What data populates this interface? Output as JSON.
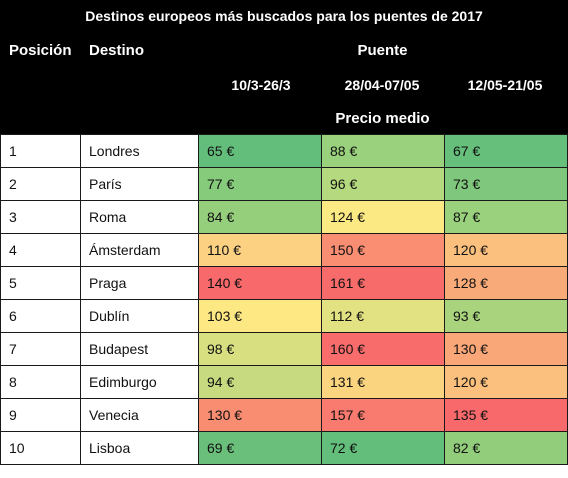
{
  "title": "Destinos europeos más buscados para los puentes de 2017",
  "headers": {
    "position": "Posición",
    "destination": "Destino",
    "bridge": "Puente",
    "periods": [
      "10/3-26/3",
      "28/04-07/05",
      "12/05-21/05"
    ],
    "average_price": "Precio medio"
  },
  "rows": [
    {
      "pos": "1",
      "dest": "Londres",
      "prices": [
        "65 €",
        "88 €",
        "67 €"
      ],
      "colors": [
        "#63be7b",
        "#9ad17c",
        "#66bf7b"
      ]
    },
    {
      "pos": "2",
      "dest": "París",
      "prices": [
        "77 €",
        "96 €",
        "73 €"
      ],
      "colors": [
        "#86ca7c",
        "#b4d97e",
        "#7ec77c"
      ]
    },
    {
      "pos": "3",
      "dest": "Roma",
      "prices": [
        "84 €",
        "124 €",
        "87 €"
      ],
      "colors": [
        "#95cf7c",
        "#fbe983",
        "#9ad17c"
      ]
    },
    {
      "pos": "4",
      "dest": "Ámsterdam",
      "prices": [
        "110 €",
        "150 €",
        "120 €"
      ],
      "colors": [
        "#fcd282",
        "#f98e73",
        "#fbc07e"
      ]
    },
    {
      "pos": "5",
      "dest": "Praga",
      "prices": [
        "140 €",
        "161 €",
        "128 €"
      ],
      "colors": [
        "#f8696b",
        "#f86b6b",
        "#f9aa79"
      ]
    },
    {
      "pos": "6",
      "dest": "Dublín",
      "prices": [
        "103 €",
        "112 €",
        "93 €"
      ],
      "colors": [
        "#fde884",
        "#e2e282",
        "#a9d47d"
      ]
    },
    {
      "pos": "7",
      "dest": "Budapest",
      "prices": [
        "98 €",
        "160 €",
        "130 €"
      ],
      "colors": [
        "#d8df81",
        "#f86d6c",
        "#f9a678"
      ]
    },
    {
      "pos": "8",
      "dest": "Edimburgo",
      "prices": [
        "94 €",
        "131 €",
        "120 €"
      ],
      "colors": [
        "#c7da80",
        "#fad47f",
        "#fbc07e"
      ]
    },
    {
      "pos": "9",
      "dest": "Venecia",
      "prices": [
        "130 €",
        "157 €",
        "135 €"
      ],
      "colors": [
        "#f98d72",
        "#f97a6f",
        "#f8696b"
      ]
    },
    {
      "pos": "10",
      "dest": "Lisboa",
      "prices": [
        "69 €",
        "72 €",
        "82 €"
      ],
      "colors": [
        "#6ac07b",
        "#63be7b",
        "#92cd7c"
      ]
    }
  ]
}
